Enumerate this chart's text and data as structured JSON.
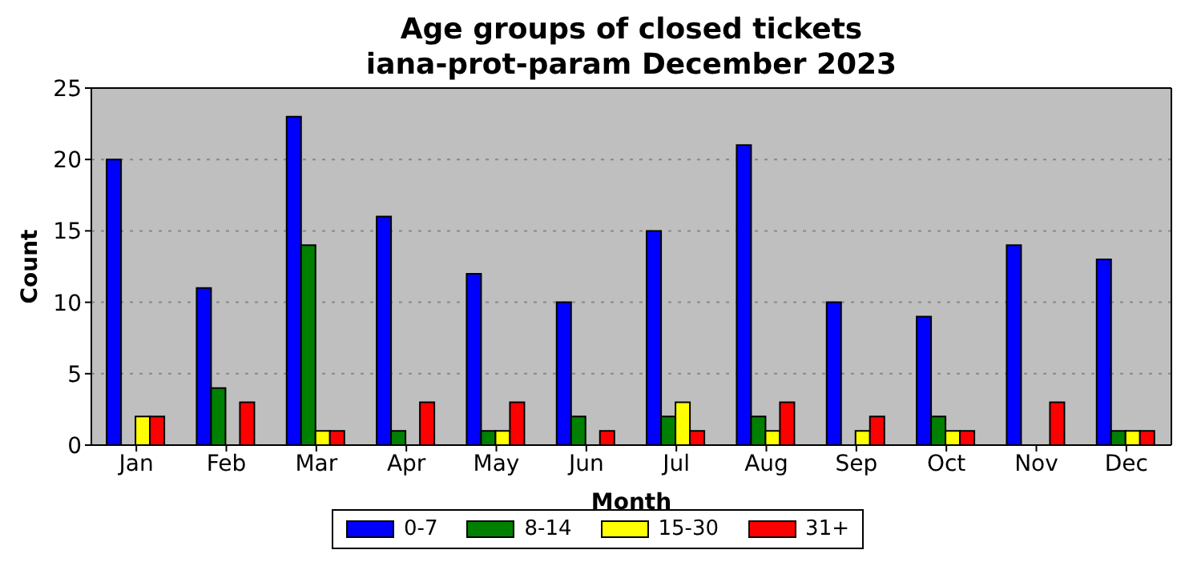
{
  "chart_data": {
    "type": "bar",
    "title": "Age groups of closed tickets",
    "subtitle": "iana-prot-param December 2023",
    "xlabel": "Month",
    "ylabel": "Count",
    "categories": [
      "Jan",
      "Feb",
      "Mar",
      "Apr",
      "May",
      "Jun",
      "Jul",
      "Aug",
      "Sep",
      "Oct",
      "Nov",
      "Dec"
    ],
    "series": [
      {
        "name": "0-7",
        "color": "#0000ff",
        "values": [
          20,
          11,
          23,
          16,
          12,
          10,
          15,
          21,
          10,
          9,
          14,
          13
        ]
      },
      {
        "name": "8-14",
        "color": "#008000",
        "values": [
          0,
          4,
          14,
          1,
          1,
          2,
          2,
          2,
          0,
          2,
          0,
          1
        ]
      },
      {
        "name": "15-30",
        "color": "#ffff00",
        "values": [
          2,
          0,
          1,
          0,
          1,
          0,
          3,
          1,
          1,
          1,
          0,
          1
        ]
      },
      {
        "name": "31+",
        "color": "#ff0000",
        "values": [
          2,
          3,
          1,
          3,
          3,
          1,
          1,
          3,
          2,
          1,
          3,
          1
        ]
      }
    ],
    "ylim": [
      0,
      25
    ],
    "yticks": [
      0,
      5,
      10,
      15,
      20,
      25
    ],
    "grid": "y",
    "legend": "bottom"
  }
}
